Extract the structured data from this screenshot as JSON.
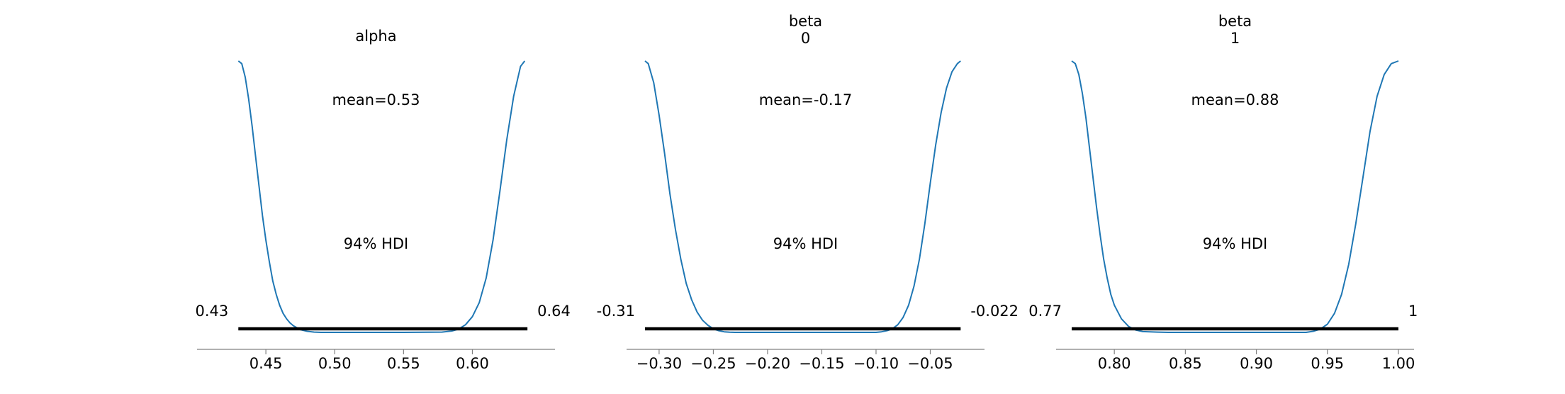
{
  "colors": {
    "curve": "#1f77b4",
    "hdi_bar": "#000000",
    "axis": "#808080",
    "text": "#000000"
  },
  "chart_data": [
    {
      "type": "line",
      "title_lines": [
        "alpha"
      ],
      "mean_label": "mean=0.53",
      "hdi_label": "94% HDI",
      "hdi_low_label": "0.43",
      "hdi_high_label": "0.64",
      "hdi": [
        0.43,
        0.64
      ],
      "xlim": [
        0.4,
        0.66
      ],
      "xticks": [
        0.45,
        0.5,
        0.55,
        0.6
      ],
      "xtick_labels": [
        "0.45",
        "0.50",
        "0.55",
        "0.60"
      ],
      "ylim": [
        0,
        1
      ],
      "x": [
        0.43,
        0.4325,
        0.435,
        0.4375,
        0.44,
        0.4425,
        0.445,
        0.4475,
        0.45,
        0.4525,
        0.455,
        0.4575,
        0.46,
        0.4625,
        0.465,
        0.4675,
        0.47,
        0.475,
        0.48,
        0.485,
        0.49,
        0.5,
        0.55,
        0.578,
        0.585,
        0.59,
        0.595,
        0.6,
        0.605,
        0.61,
        0.615,
        0.62,
        0.625,
        0.63,
        0.635,
        0.638
      ],
      "y": [
        1.0,
        0.99,
        0.94,
        0.86,
        0.76,
        0.65,
        0.54,
        0.43,
        0.34,
        0.26,
        0.19,
        0.14,
        0.1,
        0.07,
        0.05,
        0.035,
        0.024,
        0.01,
        0.004,
        0.001,
        0.0,
        0.0,
        0.0,
        0.001,
        0.005,
        0.012,
        0.028,
        0.058,
        0.11,
        0.2,
        0.34,
        0.52,
        0.71,
        0.87,
        0.98,
        1.0
      ]
    },
    {
      "type": "line",
      "title_lines": [
        "beta",
        "0"
      ],
      "mean_label": "mean=-0.17",
      "hdi_label": "94% HDI",
      "hdi_low_label": "-0.31",
      "hdi_high_label": "-0.022",
      "hdi": [
        -0.313,
        -0.022
      ],
      "xlim": [
        -0.33,
        0.0
      ],
      "xticks": [
        -0.3,
        -0.25,
        -0.2,
        -0.15,
        -0.1,
        -0.05
      ],
      "xtick_labels": [
        "−0.30",
        "−0.25",
        "−0.20",
        "−0.15",
        "−0.10",
        "−0.05"
      ],
      "ylim": [
        0,
        1
      ],
      "x": [
        -0.313,
        -0.31,
        -0.305,
        -0.3,
        -0.295,
        -0.29,
        -0.285,
        -0.28,
        -0.275,
        -0.27,
        -0.265,
        -0.26,
        -0.255,
        -0.25,
        -0.245,
        -0.24,
        -0.235,
        -0.23,
        -0.2,
        -0.15,
        -0.1,
        -0.095,
        -0.09,
        -0.085,
        -0.08,
        -0.075,
        -0.07,
        -0.065,
        -0.06,
        -0.055,
        -0.05,
        -0.045,
        -0.04,
        -0.035,
        -0.03,
        -0.025,
        -0.022
      ],
      "y": [
        1.0,
        0.99,
        0.92,
        0.8,
        0.66,
        0.51,
        0.38,
        0.27,
        0.18,
        0.12,
        0.075,
        0.045,
        0.026,
        0.013,
        0.006,
        0.002,
        0.0005,
        0.0,
        0.0,
        0.0,
        0.0,
        0.002,
        0.006,
        0.013,
        0.028,
        0.055,
        0.1,
        0.17,
        0.27,
        0.4,
        0.55,
        0.69,
        0.81,
        0.9,
        0.96,
        0.99,
        1.0
      ]
    },
    {
      "type": "line",
      "title_lines": [
        "beta",
        "1"
      ],
      "mean_label": "mean=0.88",
      "hdi_label": "94% HDI",
      "hdi_low_label": "0.77",
      "hdi_high_label": "1",
      "hdi": [
        0.77,
        1.0
      ],
      "xlim": [
        0.759,
        1.011
      ],
      "xticks": [
        0.8,
        0.85,
        0.9,
        0.95,
        1.0
      ],
      "xtick_labels": [
        "0.80",
        "0.85",
        "0.90",
        "0.95",
        "1.00"
      ],
      "ylim": [
        0,
        1
      ],
      "x": [
        0.77,
        0.7725,
        0.775,
        0.7775,
        0.78,
        0.7825,
        0.785,
        0.7875,
        0.79,
        0.7925,
        0.795,
        0.7975,
        0.8,
        0.805,
        0.81,
        0.815,
        0.82,
        0.83,
        0.838,
        0.85,
        0.9,
        0.935,
        0.94,
        0.945,
        0.95,
        0.955,
        0.96,
        0.965,
        0.97,
        0.975,
        0.98,
        0.985,
        0.99,
        0.995,
        1.0
      ],
      "y": [
        1.0,
        0.99,
        0.95,
        0.88,
        0.79,
        0.68,
        0.57,
        0.46,
        0.36,
        0.27,
        0.2,
        0.14,
        0.1,
        0.05,
        0.022,
        0.009,
        0.003,
        0.001,
        0.0,
        0.0,
        0.0,
        0.0,
        0.004,
        0.012,
        0.03,
        0.07,
        0.14,
        0.25,
        0.4,
        0.57,
        0.74,
        0.87,
        0.95,
        0.99,
        1.0
      ]
    }
  ]
}
